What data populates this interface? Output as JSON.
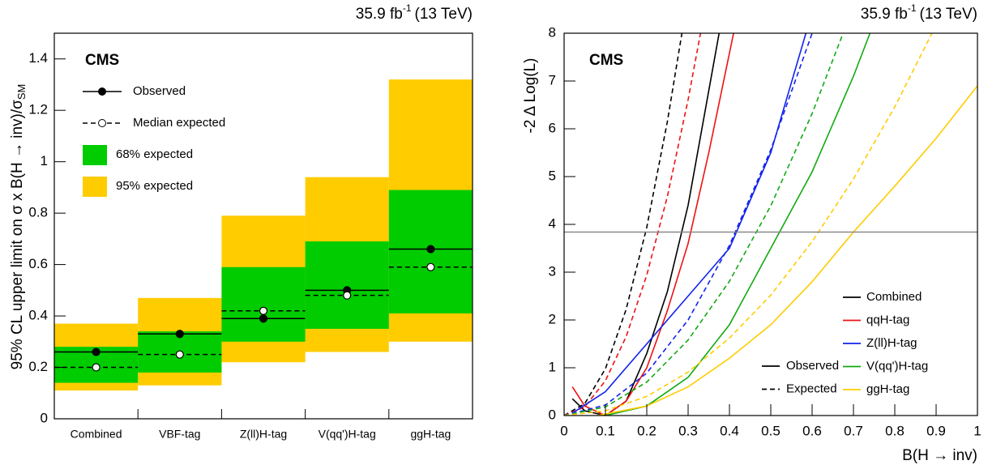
{
  "chart_data": [
    {
      "type": "limit_bands",
      "lumi": {
        "main": "35.9 fb",
        "sup": "-1",
        "energy": "(13 TeV)"
      },
      "experiment": "CMS",
      "ylabel": "95% CL upper limit on σ x B(H → inv)/σ",
      "ylabel_sub": "SM",
      "categories": [
        "Combined",
        "VBF-tag",
        "Z(ll)H-tag",
        "V(qq')H-tag",
        "ggH-tag"
      ],
      "series": [
        {
          "name": "Observed",
          "color": "#000000",
          "line_style": "solid",
          "marker_fill": "#000000",
          "values": [
            0.26,
            0.33,
            0.39,
            0.5,
            0.66
          ]
        },
        {
          "name": "Median expected",
          "color": "#000000",
          "line_style": "dashed",
          "marker_fill": "#ffffff",
          "values": [
            0.2,
            0.25,
            0.42,
            0.48,
            0.59
          ]
        }
      ],
      "bands": [
        {
          "name": "68% expected",
          "color": "#00cc00",
          "low": [
            0.14,
            0.18,
            0.3,
            0.35,
            0.41
          ],
          "high": [
            0.28,
            0.34,
            0.59,
            0.69,
            0.89
          ]
        },
        {
          "name": "95% expected",
          "color": "#ffcc00",
          "low": [
            0.11,
            0.13,
            0.22,
            0.26,
            0.3
          ],
          "high": [
            0.37,
            0.47,
            0.79,
            0.94,
            1.32
          ]
        }
      ],
      "ylim": [
        0,
        1.5
      ],
      "yticks": [
        0,
        0.2,
        0.4,
        0.6,
        0.8,
        1,
        1.2,
        1.4
      ]
    },
    {
      "type": "line",
      "lumi": {
        "main": "35.9 fb",
        "sup": "-1",
        "energy": "(13 TeV)"
      },
      "experiment": "CMS",
      "xlabel": "B(H → inv)",
      "ylabel": "-2 Δ Log(L)",
      "xlim": [
        0,
        1
      ],
      "xticks": [
        0,
        0.1,
        0.2,
        0.3,
        0.4,
        0.5,
        0.6,
        0.7,
        0.8,
        0.9,
        1
      ],
      "ylim": [
        0,
        8
      ],
      "yticks": [
        0,
        1,
        2,
        3,
        4,
        5,
        6,
        7,
        8
      ],
      "reference_line": {
        "value": 3.84,
        "color": "#888888"
      },
      "line_styles": [
        {
          "name": "Observed",
          "dash": "solid"
        },
        {
          "name": "Expected",
          "dash": "dashed"
        }
      ],
      "groups": [
        {
          "name": "Combined",
          "color": "#000000",
          "observed": {
            "x": [
              0.02,
              0.05,
              0.1,
              0.15,
              0.2,
              0.25,
              0.3,
              0.35,
              0.375
            ],
            "y": [
              0.35,
              0.1,
              0.0,
              0.3,
              1.3,
              2.6,
              4.4,
              6.8,
              8
            ]
          },
          "expected": {
            "x": [
              0,
              0.05,
              0.1,
              0.15,
              0.2,
              0.25,
              0.285
            ],
            "y": [
              0,
              0.25,
              0.98,
              2.22,
              3.94,
              6.16,
              8
            ]
          }
        },
        {
          "name": "qqH-tag",
          "color": "#ee1111",
          "observed": {
            "x": [
              0.02,
              0.05,
              0.1,
              0.15,
              0.2,
              0.25,
              0.3,
              0.35,
              0.41
            ],
            "y": [
              0.6,
              0.2,
              0.0,
              0.3,
              1.0,
              2.2,
              3.6,
              5.5,
              8
            ]
          },
          "expected": {
            "x": [
              0,
              0.05,
              0.1,
              0.15,
              0.2,
              0.25,
              0.3,
              0.33
            ],
            "y": [
              0,
              0.18,
              0.73,
              1.65,
              2.94,
              4.59,
              6.61,
              8
            ]
          }
        },
        {
          "name": "Z(ll)H-tag",
          "color": "#1122ee",
          "observed": {
            "x": [
              0.02,
              0.1,
              0.2,
              0.3,
              0.4,
              0.5,
              0.585
            ],
            "y": [
              0.05,
              0.5,
              1.5,
              2.5,
              3.5,
              5.5,
              8
            ]
          },
          "expected": {
            "x": [
              0,
              0.1,
              0.2,
              0.3,
              0.4,
              0.5,
              0.6
            ],
            "y": [
              0,
              0.22,
              0.89,
              2.0,
              3.56,
              5.56,
              8
            ]
          }
        },
        {
          "name": "V(qq')H-tag",
          "color": "#11aa11",
          "observed": {
            "x": [
              0.1,
              0.2,
              0.3,
              0.4,
              0.5,
              0.6,
              0.7,
              0.74
            ],
            "y": [
              0,
              0.2,
              0.8,
              1.9,
              3.5,
              5.1,
              7.1,
              8
            ]
          },
          "expected": {
            "x": [
              0,
              0.1,
              0.2,
              0.3,
              0.4,
              0.5,
              0.6,
              0.675
            ],
            "y": [
              0,
              0.18,
              0.7,
              1.58,
              2.81,
              4.39,
              6.32,
              8
            ]
          }
        },
        {
          "name": "ggH-tag",
          "color": "#ffcc00",
          "observed": {
            "x": [
              0.08,
              0.2,
              0.3,
              0.4,
              0.5,
              0.6,
              0.7,
              0.8,
              0.9,
              1.0
            ],
            "y": [
              0,
              0.2,
              0.6,
              1.2,
              1.9,
              2.8,
              3.84,
              4.8,
              5.8,
              6.9
            ]
          },
          "expected": {
            "x": [
              0,
              0.1,
              0.2,
              0.3,
              0.4,
              0.5,
              0.6,
              0.7,
              0.8,
              0.89
            ],
            "y": [
              0,
              0.1,
              0.4,
              0.91,
              1.62,
              2.52,
              3.64,
              4.95,
              6.46,
              8
            ]
          }
        }
      ]
    }
  ]
}
